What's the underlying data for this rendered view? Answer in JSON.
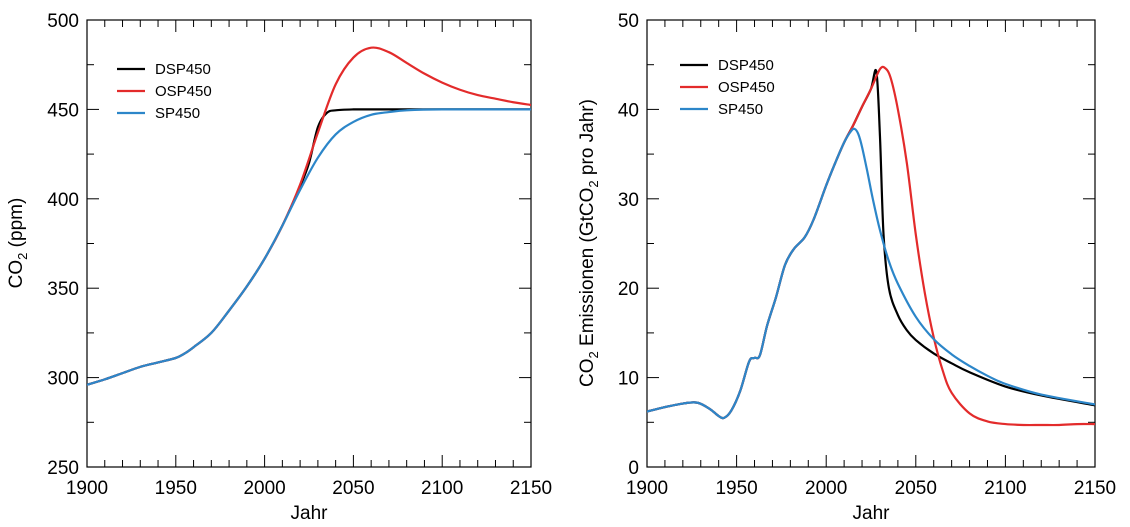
{
  "chart_data": [
    {
      "type": "line",
      "xlabel": "Jahr",
      "ylabel": "CO2 (ppm)",
      "ylabel_main": "CO",
      "ylabel_sub": "2",
      "ylabel_rest": " (ppm)",
      "xlim": [
        1900,
        2150
      ],
      "ylim": [
        250,
        500
      ],
      "xticks": [
        1900,
        1950,
        2000,
        2050,
        2100,
        2150
      ],
      "yticks": [
        250,
        300,
        350,
        400,
        450,
        500
      ],
      "xticks_minor_step": 10,
      "yticks_minor_step": 25,
      "legend_position": "top-left",
      "series": [
        {
          "name": "DSP450",
          "color": "#000000",
          "x": [
            1900,
            1910,
            1920,
            1930,
            1940,
            1950,
            1955,
            1960,
            1970,
            1980,
            1990,
            2000,
            2010,
            2020,
            2025,
            2030,
            2035,
            2040,
            2050,
            2060,
            2080,
            2100,
            2150
          ],
          "y": [
            296,
            299,
            302.5,
            306,
            308.5,
            311,
            313.5,
            317,
            325,
            337.5,
            351,
            366.5,
            385,
            407,
            420,
            440,
            448,
            449.5,
            450,
            450,
            450,
            450,
            450
          ]
        },
        {
          "name": "OSP450",
          "color": "#e32b2b",
          "x": [
            1900,
            1910,
            1920,
            1930,
            1940,
            1950,
            1955,
            1960,
            1970,
            1980,
            1990,
            2000,
            2010,
            2020,
            2030,
            2040,
            2050,
            2060,
            2070,
            2080,
            2090,
            2100,
            2110,
            2120,
            2130,
            2140,
            2150
          ],
          "y": [
            296,
            299,
            302.5,
            306,
            308.5,
            311,
            313.5,
            317,
            325,
            337.5,
            351,
            366.5,
            385,
            408,
            437,
            464,
            479,
            484.5,
            482,
            476,
            470,
            465,
            461,
            458,
            456,
            454,
            452.5
          ]
        },
        {
          "name": "SP450",
          "color": "#2c86c9",
          "x": [
            1900,
            1910,
            1920,
            1930,
            1940,
            1950,
            1955,
            1960,
            1970,
            1980,
            1990,
            2000,
            2010,
            2020,
            2030,
            2040,
            2050,
            2060,
            2070,
            2080,
            2100,
            2150
          ],
          "y": [
            296,
            299,
            302.5,
            306,
            308.5,
            311,
            313.5,
            317,
            325,
            337.5,
            351,
            366.5,
            385,
            405,
            423,
            436,
            443,
            447,
            448.5,
            449.5,
            450,
            450
          ]
        }
      ]
    },
    {
      "type": "line",
      "xlabel": "Jahr",
      "ylabel": "CO2 Emissionen (GtCO2 pro Jahr)",
      "ylabel_main": "CO",
      "ylabel_sub": "2",
      "ylabel_mid": " Emissionen (GtCO",
      "ylabel_sub2": "2",
      "ylabel_rest": " pro Jahr)",
      "xlim": [
        1900,
        2150
      ],
      "ylim": [
        0,
        50
      ],
      "xticks": [
        1900,
        1950,
        2000,
        2050,
        2100,
        2150
      ],
      "yticks": [
        0,
        10,
        20,
        30,
        40,
        50
      ],
      "xticks_minor_step": 10,
      "yticks_minor_step": 5,
      "legend_position": "top-left",
      "series": [
        {
          "name": "DSP450",
          "color": "#000000",
          "x": [
            1900,
            1910,
            1920,
            1928,
            1935,
            1940,
            1943,
            1947,
            1952,
            1957,
            1960,
            1963,
            1967,
            1972,
            1977,
            1982,
            1988,
            1993,
            2000,
            2005,
            2010,
            2015,
            2020,
            2025,
            2028,
            2030,
            2032,
            2035,
            2040,
            2045,
            2050,
            2060,
            2070,
            2080,
            2100,
            2120,
            2150
          ],
          "y": [
            6.2,
            6.7,
            7.1,
            7.2,
            6.5,
            5.7,
            5.5,
            6.3,
            8.5,
            11.8,
            12.2,
            12.5,
            15.8,
            19.0,
            22.6,
            24.4,
            25.7,
            27.7,
            31.5,
            34.0,
            36.3,
            38.2,
            40.3,
            42.3,
            44.2,
            37.0,
            26.0,
            20.0,
            17.0,
            15.3,
            14.2,
            12.7,
            11.6,
            10.6,
            9.0,
            8.0,
            6.9
          ]
        },
        {
          "name": "OSP450",
          "color": "#e32b2b",
          "x": [
            1900,
            1910,
            1920,
            1928,
            1935,
            1940,
            1943,
            1947,
            1952,
            1957,
            1960,
            1963,
            1967,
            1972,
            1977,
            1982,
            1988,
            1993,
            2000,
            2005,
            2010,
            2015,
            2020,
            2025,
            2030,
            2033,
            2036,
            2040,
            2045,
            2050,
            2055,
            2060,
            2065,
            2070,
            2080,
            2090,
            2100,
            2110,
            2120,
            2130,
            2140,
            2150
          ],
          "y": [
            6.2,
            6.7,
            7.1,
            7.2,
            6.5,
            5.7,
            5.5,
            6.3,
            8.5,
            11.8,
            12.2,
            12.5,
            15.8,
            19.0,
            22.6,
            24.4,
            25.7,
            27.7,
            31.5,
            34.0,
            36.3,
            38.2,
            40.3,
            42.3,
            44.5,
            44.6,
            43.5,
            40.0,
            34.0,
            26.0,
            19.5,
            14.5,
            10.8,
            8.3,
            6.0,
            5.1,
            4.8,
            4.7,
            4.7,
            4.7,
            4.8,
            4.8
          ]
        },
        {
          "name": "SP450",
          "color": "#2c86c9",
          "x": [
            1900,
            1910,
            1920,
            1928,
            1935,
            1940,
            1943,
            1947,
            1952,
            1957,
            1960,
            1963,
            1967,
            1972,
            1977,
            1982,
            1988,
            1993,
            2000,
            2005,
            2010,
            2014,
            2016,
            2018,
            2020,
            2023,
            2026,
            2030,
            2035,
            2040,
            2050,
            2060,
            2070,
            2080,
            2090,
            2100,
            2120,
            2150
          ],
          "y": [
            6.2,
            6.7,
            7.1,
            7.2,
            6.5,
            5.7,
            5.5,
            6.3,
            8.5,
            11.8,
            12.2,
            12.5,
            15.8,
            19.0,
            22.6,
            24.4,
            25.7,
            27.7,
            31.5,
            34.0,
            36.3,
            37.6,
            37.8,
            37.2,
            35.8,
            33.0,
            30.0,
            26.5,
            23.0,
            20.5,
            16.8,
            14.3,
            12.6,
            11.3,
            10.2,
            9.3,
            8.1,
            7.0
          ]
        }
      ]
    }
  ]
}
